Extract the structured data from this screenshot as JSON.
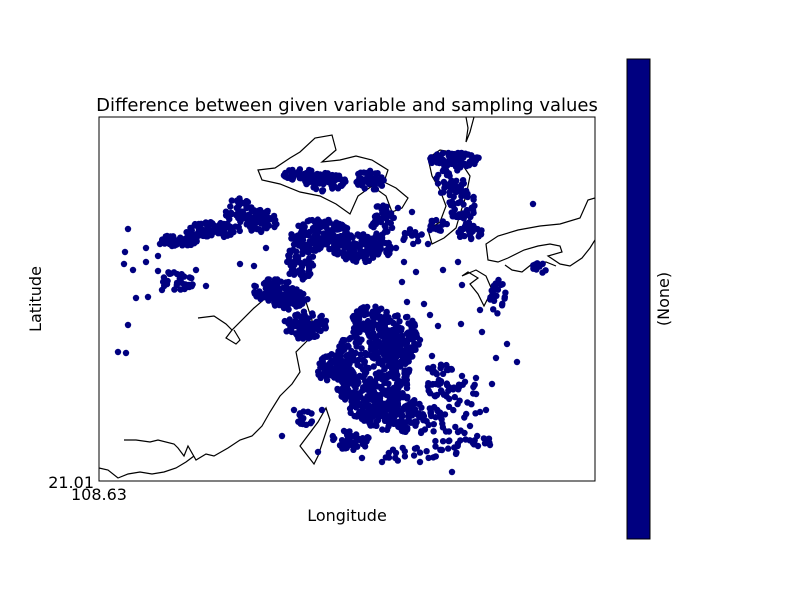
{
  "chart_data": {
    "type": "scatter",
    "title": "Difference between given variable and sampling values",
    "xlabel": "Longitude",
    "ylabel": "Latitude",
    "x_tick_label": "108.63",
    "y_tick_label": "21.01",
    "colorbar_label": "(None)",
    "colorbar_color": "#000080",
    "marker_color": "#000080",
    "grid": false,
    "legend": "none"
  }
}
